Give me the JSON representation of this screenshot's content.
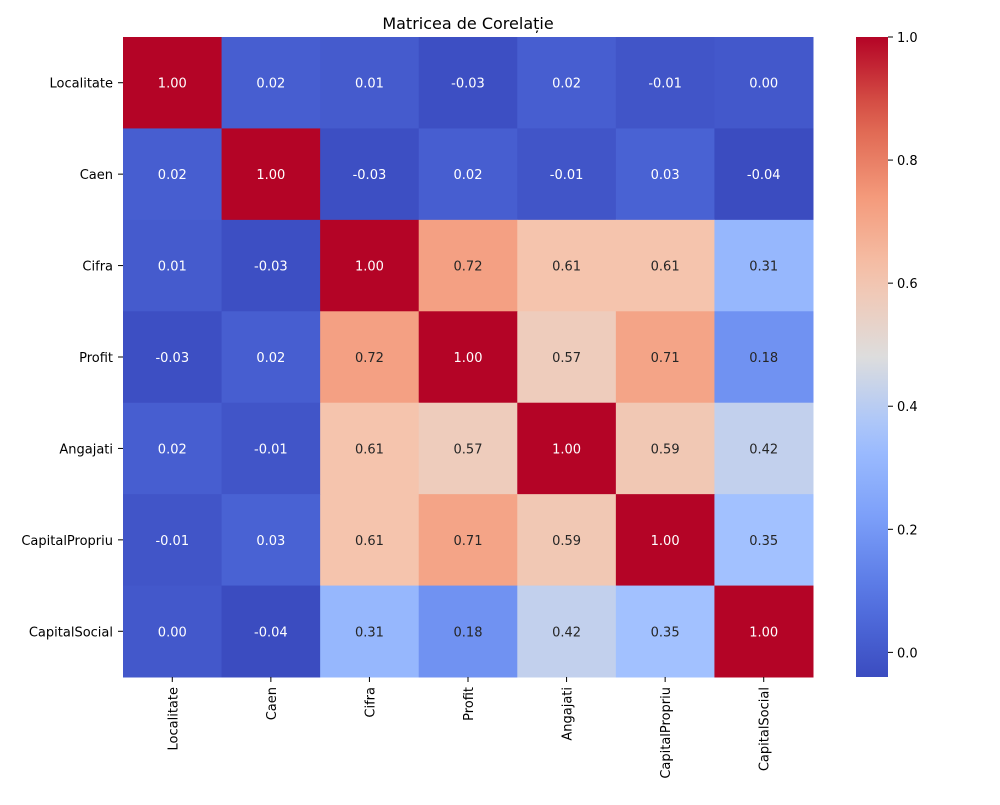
{
  "chart_data": {
    "type": "heatmap",
    "title": "Matricea de Corelație",
    "row_labels": [
      "Localitate",
      "Caen",
      "Cifra",
      "Profit",
      "Angajati",
      "CapitalPropriu",
      "CapitalSocial"
    ],
    "col_labels": [
      "Localitate",
      "Caen",
      "Cifra",
      "Profit",
      "Angajati",
      "CapitalPropriu",
      "CapitalSocial"
    ],
    "values": [
      [
        1.0,
        0.02,
        0.01,
        -0.03,
        0.02,
        -0.01,
        0.0
      ],
      [
        0.02,
        1.0,
        -0.03,
        0.02,
        -0.01,
        0.03,
        -0.04
      ],
      [
        0.01,
        -0.03,
        1.0,
        0.72,
        0.61,
        0.61,
        0.31
      ],
      [
        -0.03,
        0.02,
        0.72,
        1.0,
        0.57,
        0.71,
        0.18
      ],
      [
        0.02,
        -0.01,
        0.61,
        0.57,
        1.0,
        0.59,
        0.42
      ],
      [
        -0.01,
        0.03,
        0.61,
        0.71,
        0.59,
        1.0,
        0.35
      ],
      [
        0.0,
        -0.04,
        0.31,
        0.18,
        0.42,
        0.35,
        1.0
      ]
    ],
    "annotation_format": "2 decimals",
    "colormap": "coolwarm",
    "colorbar": {
      "range": [
        -0.04,
        1.0
      ],
      "ticks": [
        0.0,
        0.2,
        0.4,
        0.6,
        0.8,
        1.0
      ],
      "tick_labels": [
        "0.0",
        "0.2",
        "0.4",
        "0.6",
        "0.8",
        "1.0"
      ]
    },
    "xlabel": "",
    "ylabel": ""
  }
}
